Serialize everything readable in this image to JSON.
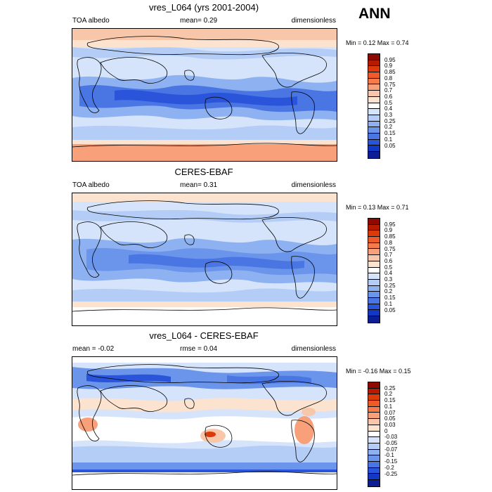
{
  "season": "ANN",
  "panels": [
    {
      "title": "vres_L064 (yrs 2001-2004)",
      "left": "TOA albedo",
      "center": "mean=   0.29",
      "right": "dimensionless",
      "minmax": "Min =   0.12 Max =   0.74",
      "levels": [
        "0.95",
        "0.9",
        "0.85",
        "0.8",
        "0.75",
        "0.7",
        "0.6",
        "0.5",
        "0.4",
        "0.3",
        "0.25",
        "0.2",
        "0.15",
        "0.1",
        "0.05"
      ],
      "colors": [
        "#8c0a00",
        "#b81a00",
        "#dc3a0a",
        "#ee5a2a",
        "#f57b4a",
        "#f7a07a",
        "#f8c7aa",
        "#fbe3d0",
        "#ffffff",
        "#d6e4fb",
        "#b4cdf6",
        "#8eb2f1",
        "#6a95ea",
        "#4a76e4",
        "#2a55da",
        "#1238c6",
        "#0c1d96"
      ]
    },
    {
      "title": "CERES-EBAF",
      "left": "TOA albedo",
      "center": "mean=   0.31",
      "right": "dimensionless",
      "minmax": "Min =   0.13 Max =   0.71",
      "levels": [
        "0.95",
        "0.9",
        "0.85",
        "0.8",
        "0.75",
        "0.7",
        "0.6",
        "0.5",
        "0.4",
        "0.3",
        "0.25",
        "0.2",
        "0.15",
        "0.1",
        "0.05"
      ],
      "colors": [
        "#8c0a00",
        "#b81a00",
        "#dc3a0a",
        "#ee5a2a",
        "#f57b4a",
        "#f7a07a",
        "#f8c7aa",
        "#fbe3d0",
        "#ffffff",
        "#d6e4fb",
        "#b4cdf6",
        "#8eb2f1",
        "#6a95ea",
        "#4a76e4",
        "#2a55da",
        "#1238c6",
        "#0c1d96"
      ]
    },
    {
      "title": "vres_L064 - CERES-EBAF",
      "left": "mean =  -0.02",
      "center": "rmse =   0.04",
      "right": "dimensionless",
      "minmax": "Min =  -0.16 Max =   0.15",
      "levels": [
        "0.25",
        "0.2",
        "0.15",
        "0.1",
        "0.07",
        "0.05",
        "0.03",
        "0",
        "-0.03",
        "-0.05",
        "-0.07",
        "-0.1",
        "-0.15",
        "-0.2",
        "-0.25"
      ],
      "colors": [
        "#8c0a00",
        "#b81a00",
        "#dc3a0a",
        "#ee5a2a",
        "#f57b4a",
        "#f7a07a",
        "#f8c7aa",
        "#fbe3d0",
        "#ffffff",
        "#d6e4fb",
        "#b4cdf6",
        "#8eb2f1",
        "#6a95ea",
        "#4a76e4",
        "#2a55da",
        "#1238c6",
        "#0c1d96"
      ]
    }
  ]
}
